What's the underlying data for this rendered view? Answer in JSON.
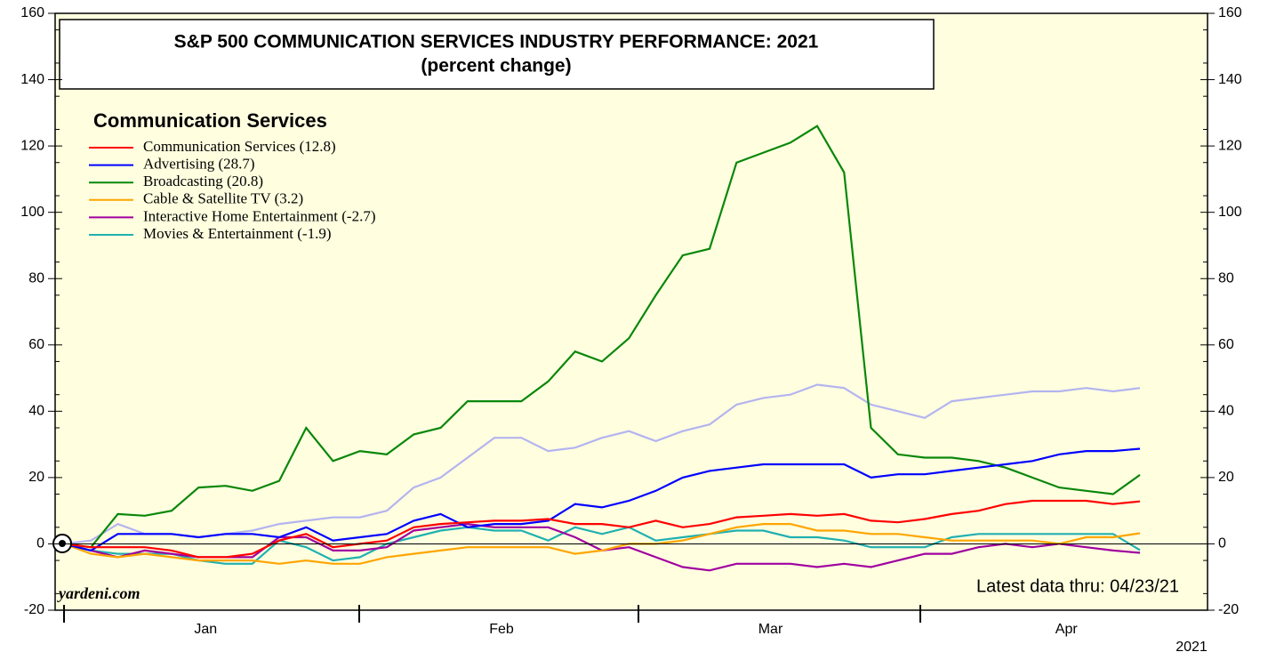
{
  "chart_data": {
    "type": "line",
    "title": "S&P 500 COMMUNICATION SERVICES INDUSTRY PERFORMANCE: 2021",
    "subtitle": "(percent change)",
    "legend_title": "Communication Services",
    "source": "yardeni.com",
    "note": "Latest data thru: 04/23/21",
    "year_label": "2021",
    "categories": [
      null,
      null,
      null,
      null,
      null,
      "Jan",
      null,
      null,
      null,
      null,
      null,
      null,
      null,
      null,
      null,
      null,
      "Feb",
      null,
      null,
      null,
      null,
      null,
      null,
      null,
      null,
      null,
      "Mar",
      null,
      null,
      null,
      null,
      null,
      null,
      null,
      null,
      null,
      null,
      "Apr",
      null,
      null,
      null
    ],
    "ylim": [
      -20,
      160
    ],
    "yticks": [
      -20,
      0,
      20,
      40,
      60,
      80,
      100,
      120,
      140,
      160
    ],
    "y2lim": [
      -20,
      160
    ],
    "y2ticks": [
      -20,
      0,
      20,
      40,
      60,
      80,
      100,
      120,
      140,
      160
    ],
    "legend": "upper left",
    "series": [
      {
        "name": "Communication Services (12.8)",
        "color": "#ff0000",
        "values": [
          0,
          -1,
          -1,
          -1,
          -2,
          -4,
          -4,
          -3,
          1,
          3,
          -1,
          0,
          1,
          5,
          6,
          6.5,
          7,
          7,
          7.5,
          6,
          6,
          5,
          7,
          5,
          6,
          8,
          8.5,
          9,
          8.5,
          9,
          7,
          6.5,
          7.5,
          9,
          10,
          12,
          13,
          13,
          13,
          12,
          12.8
        ]
      },
      {
        "name": "Advertising (28.7)",
        "color": "#0000ff",
        "values": [
          0,
          -2,
          3,
          3,
          3,
          2,
          3,
          3,
          2,
          5,
          1,
          2,
          3,
          7,
          9,
          5,
          6,
          6,
          7,
          12,
          11,
          13,
          16,
          20,
          22,
          23,
          24,
          24,
          24,
          24,
          20,
          21,
          21,
          22,
          23,
          24,
          25,
          27,
          28,
          28,
          28.7
        ]
      },
      {
        "name": "Broadcasting (20.8)",
        "color": "#0a870a",
        "values": [
          0,
          -1,
          9,
          8.5,
          10,
          17,
          17.5,
          16,
          19,
          35,
          25,
          28,
          27,
          33,
          35,
          43,
          43,
          43,
          49,
          58,
          55,
          62,
          75,
          87,
          89,
          115,
          118,
          121,
          126,
          112,
          35,
          27,
          26,
          26,
          25,
          23,
          20,
          17,
          16,
          15,
          20.8
        ]
      },
      {
        "name": "Cable & Satellite TV (3.2)",
        "color": "#ffa500",
        "values": [
          0,
          -3,
          -4,
          -3,
          -4,
          -5,
          -5,
          -5,
          -6,
          -5,
          -6,
          -6,
          -4,
          -3,
          -2,
          -1,
          -1,
          -1,
          -1,
          -3,
          -2,
          0,
          0,
          1,
          3,
          5,
          6,
          6,
          4,
          4,
          3,
          3,
          2,
          1,
          1,
          1,
          1,
          0,
          2,
          2,
          3.2
        ]
      },
      {
        "name": "Interactive Home Entertainment (-2.7)",
        "color": "#a000a0",
        "values": [
          0,
          -2,
          -4,
          -2,
          -3,
          -4,
          -4,
          -4,
          2,
          2,
          -2,
          -2,
          -1,
          4,
          5,
          6,
          5,
          5,
          5,
          2,
          -2,
          -1,
          -4,
          -7,
          -8,
          -6,
          -6,
          -6,
          -7,
          -6,
          -7,
          -5,
          -3,
          -3,
          -1,
          0,
          -1,
          0,
          -1,
          -2,
          -2.7
        ]
      },
      {
        "name": "Movies & Entertainment (-1.9)",
        "color": "#20b0b0",
        "values": [
          0,
          -2,
          -3,
          -3,
          -3,
          -5,
          -6,
          -6,
          1,
          -1,
          -5,
          -4,
          0,
          2,
          4,
          5,
          4,
          4,
          1,
          5,
          3,
          5,
          1,
          2,
          3,
          4,
          4,
          2,
          2,
          1,
          -1,
          -1,
          -1,
          2,
          3,
          3,
          3,
          3,
          3,
          3,
          -1.9
        ]
      },
      {
        "color": "#b4b4f0",
        "values": [
          0,
          1,
          6,
          3,
          3,
          2,
          3,
          4,
          6,
          7,
          8,
          8,
          10,
          17,
          20,
          26,
          32,
          32,
          28,
          29,
          32,
          34,
          31,
          34,
          36,
          42,
          44,
          45,
          48,
          47,
          42,
          40,
          38,
          43,
          44,
          45,
          46,
          46,
          47,
          46,
          47
        ]
      }
    ]
  }
}
